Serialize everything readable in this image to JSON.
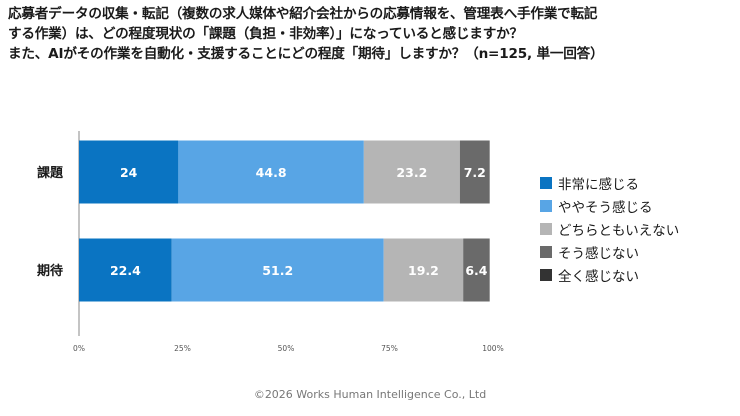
{
  "title_lines": [
    "応募者データの収集・転記（複数の求人媒体や紹介会社からの応募情報を、管理表へ手作業で転記",
    "する作業）は、どの程度現状の「課題（負担・非効率）」になっていると感じますか？",
    "また、AIがその作業を自動化・支援することにどの程度「期待」しますか？（n=125, 単一回答）"
  ],
  "chart_data": {
    "type": "bar",
    "orientation": "horizontal",
    "stacked": true,
    "categories": [
      "課題",
      "期待"
    ],
    "series": [
      {
        "name": "非常に感じる",
        "color": "#0a74c2",
        "values": [
          24,
          22.4
        ]
      },
      {
        "name": "ややそう感じる",
        "color": "#58a5e5",
        "values": [
          44.8,
          51.2
        ]
      },
      {
        "name": "どちらともいえない",
        "color": "#b5b5b5",
        "values": [
          23.2,
          19.2
        ]
      },
      {
        "name": "そう感じない",
        "color": "#6a6a6a",
        "values": [
          7.2,
          6.4
        ]
      },
      {
        "name": "全く感じない",
        "color": "#333333",
        "values": [
          0,
          0
        ]
      }
    ],
    "xlim": [
      0,
      100
    ],
    "xticks": [
      "0%",
      "25%",
      "50%",
      "75%",
      "100%"
    ],
    "grid": false,
    "legend_position": "right"
  },
  "footer": {
    "copyright": "©2026 Works Human Intelligence Co., Ltd"
  }
}
